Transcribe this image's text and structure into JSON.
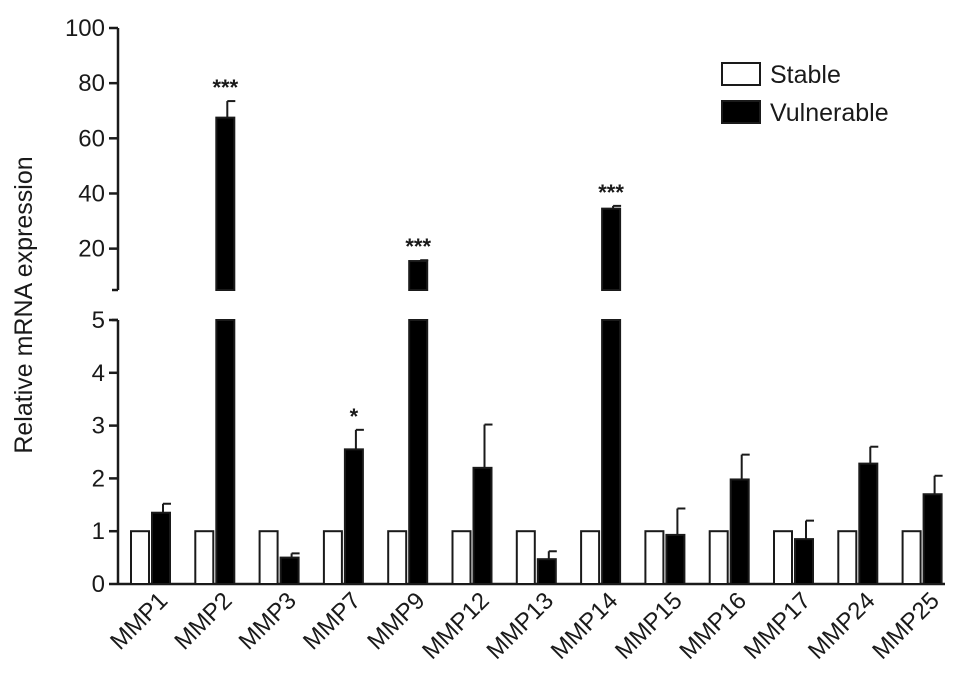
{
  "chart_data": {
    "type": "bar",
    "ylabel": "Relative mRNA expression",
    "xlabel": "",
    "categories": [
      "MMP1",
      "MMP2",
      "MMP3",
      "MMP7",
      "MMP9",
      "MMP12",
      "MMP13",
      "MMP14",
      "MMP15",
      "MMP16",
      "MMP17",
      "MMP24",
      "MMP25"
    ],
    "series": [
      {
        "name": "Stable",
        "color": "#ffffff",
        "values": [
          1,
          1,
          1,
          1,
          1,
          1,
          1,
          1,
          1,
          1,
          1,
          1,
          1
        ],
        "errors": [
          0,
          0,
          0,
          0,
          0,
          0,
          0,
          0,
          0,
          0,
          0,
          0,
          0
        ]
      },
      {
        "name": "Vulnerable",
        "color": "#000000",
        "values": [
          1.35,
          67.5,
          0.5,
          2.55,
          15.5,
          2.2,
          0.47,
          34.5,
          0.93,
          1.98,
          0.85,
          2.28,
          1.7
        ],
        "errors": [
          0.17,
          6,
          0.08,
          0.37,
          0.3,
          0.82,
          0.15,
          1,
          0.5,
          0.47,
          0.35,
          0.32,
          0.35
        ]
      }
    ],
    "significance": [
      "",
      "***",
      "",
      "*",
      "***",
      "",
      "",
      "***",
      "",
      "",
      "",
      "",
      ""
    ],
    "y_axis": {
      "broken": true,
      "lower_segment": {
        "range": [
          0,
          5
        ],
        "ticks": [
          "0",
          "1",
          "2",
          "3",
          "4",
          "5"
        ]
      },
      "upper_segment": {
        "range": [
          5,
          100
        ],
        "ticks": [
          "20",
          "40",
          "60",
          "80",
          "100"
        ]
      }
    },
    "legend": {
      "position": "top-right",
      "entries": [
        "Stable",
        "Vulnerable"
      ]
    },
    "grid": false
  }
}
